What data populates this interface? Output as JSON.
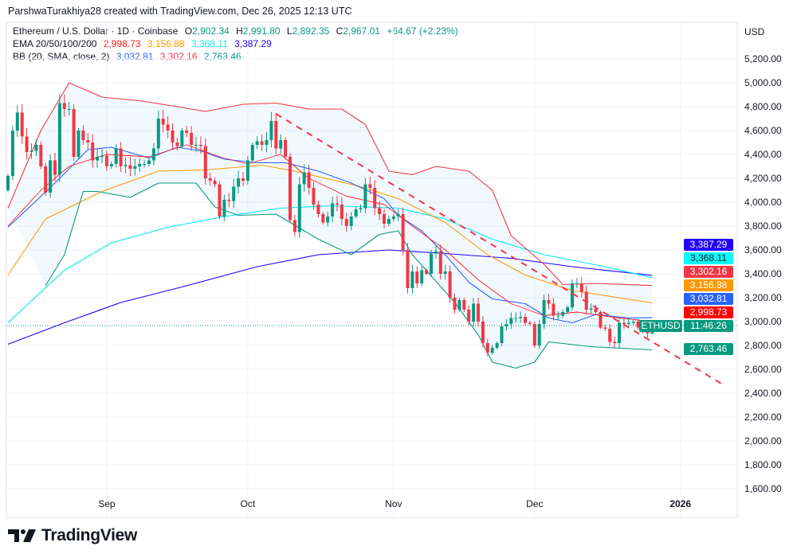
{
  "credit": "ParshwaTurakhiya28 created with TradingView.com, Dec 26, 2025 12:13 UTC",
  "legend": {
    "symbol": "Ethereum / U.S. Dollar · 1D · Coinbase",
    "o_label": "O",
    "o": "2,902.34",
    "h_label": "H",
    "h": "2,991.80",
    "l_label": "L",
    "l": "2,892.35",
    "c_label": "C",
    "c": "2,967.01",
    "change": "+64.67 (+2.23%)",
    "ema_label": "EMA 20/50/100/200",
    "ema20": "2,998.73",
    "ema50": "3,156.88",
    "ema100": "3,368.11",
    "ema200": "3,387.29",
    "bb_label": "BB (20, SMA, close, 2)",
    "bb_basis": "3,032.81",
    "bb_upper": "3,302.16",
    "bb_lower": "2,763.46"
  },
  "currency": "USD",
  "price_labels": {
    "ema200": "3,387.29",
    "ema100": "3,368.11",
    "bb_upper": "3,302.16",
    "ema50": "3,156.88",
    "bb_basis": "3,032.81",
    "ema20": "2,998.73",
    "symbol": "ETHUSD",
    "countdown": "11:46:26",
    "bb_lower": "2,763.46"
  },
  "colors": {
    "up": "#089981",
    "down": "#f23645",
    "ema20": "#ff1a1a",
    "ema50": "#ff9800",
    "ema100": "#00e5f0",
    "ema200": "#2200ff",
    "bb_basis": "#2962ff",
    "bb_upper": "#f23645",
    "bb_lower": "#089981",
    "trendline": "#f23645"
  },
  "brand": "TradingView",
  "chart_data": {
    "type": "candlestick",
    "symbol": "ETHUSD",
    "interval": "1D",
    "ylim": [
      1550,
      5300
    ],
    "yticks": [
      "1,600.00",
      "1,800.00",
      "2,000.00",
      "2,200.00",
      "2,400.00",
      "2,600.00",
      "2,800.00",
      "3,000.00",
      "3,200.00",
      "3,400.00",
      "3,600.00",
      "3,800.00",
      "4,000.00",
      "4,200.00",
      "4,400.00",
      "4,600.00",
      "4,800.00",
      "5,000.00",
      "5,200.00"
    ],
    "xticks": [
      {
        "label": "Sep",
        "date": "2025-09-01"
      },
      {
        "label": "Oct",
        "date": "2025-10-01"
      },
      {
        "label": "Nov",
        "date": "2025-11-01"
      },
      {
        "label": "Dec",
        "date": "2025-12-01"
      },
      {
        "label": "2026",
        "date": "2026-01-01",
        "bold": true
      }
    ],
    "grid": true,
    "start_date": "2025-08-11",
    "first_open": 4100,
    "close": [
      4220,
      4600,
      4750,
      4550,
      4420,
      4430,
      4480,
      4300,
      4080,
      4350,
      4230,
      4830,
      4780,
      4780,
      4380,
      4600,
      4520,
      4500,
      4350,
      4380,
      4390,
      4300,
      4320,
      4450,
      4300,
      4310,
      4280,
      4300,
      4320,
      4320,
      4350,
      4450,
      4700,
      4650,
      4600,
      4500,
      4470,
      4600,
      4580,
      4480,
      4480,
      4470,
      4200,
      4180,
      4150,
      3880,
      4020,
      4010,
      4130,
      4200,
      4180,
      4350,
      4480,
      4510,
      4480,
      4520,
      4680,
      4450,
      4520,
      4380,
      3850,
      3750,
      4150,
      4250,
      4120,
      3980,
      3900,
      3830,
      3880,
      3990,
      3980,
      3860,
      3800,
      3880,
      3940,
      3950,
      4150,
      4120,
      3950,
      3900,
      3820,
      3860,
      3880,
      3900,
      3600,
      3280,
      3420,
      3320,
      3430,
      3400,
      3570,
      3590,
      3400,
      3420,
      3200,
      3100,
      3180,
      3100,
      3000,
      3150,
      3000,
      2820,
      2740,
      2780,
      2820,
      2960,
      2980,
      3030,
      3030,
      3040,
      2990,
      2980,
      2800,
      2980,
      3180,
      3150,
      3050,
      3050,
      3080,
      3120,
      3320,
      3320,
      3250,
      3100,
      3110,
      3080,
      2950,
      2940,
      2830,
      2820,
      2990,
      2980,
      2990,
      3000,
      2950,
      2930,
      2902.34,
      2967.01
    ],
    "last_candle": {
      "date": "2025-12-26",
      "open": 2902.34,
      "high": 2991.8,
      "low": 2892.35,
      "close": 2967.01
    },
    "last_price": 2967.01,
    "indicators": {
      "bb_upper": [
        [
          "2025-08-11",
          3950
        ],
        [
          "2025-08-18",
          4600
        ],
        [
          "2025-08-24",
          5000
        ],
        [
          "2025-08-31",
          4880
        ],
        [
          "2025-09-08",
          4850
        ],
        [
          "2025-09-16",
          4800
        ],
        [
          "2025-09-22",
          4760
        ],
        [
          "2025-09-30",
          4820
        ],
        [
          "2025-10-07",
          4830
        ],
        [
          "2025-10-14",
          4780
        ],
        [
          "2025-10-21",
          4780
        ],
        [
          "2025-10-26",
          4650
        ],
        [
          "2025-10-31",
          4260
        ],
        [
          "2025-11-05",
          4230
        ],
        [
          "2025-11-10",
          4300
        ],
        [
          "2025-11-17",
          4260
        ],
        [
          "2025-11-22",
          4100
        ],
        [
          "2025-11-26",
          3720
        ],
        [
          "2025-12-03",
          3480
        ],
        [
          "2025-12-07",
          3310
        ],
        [
          "2025-12-14",
          3320
        ],
        [
          "2025-12-26",
          3302.16
        ]
      ],
      "bb_lower": [
        [
          "2025-08-19",
          3300
        ],
        [
          "2025-08-23",
          3560
        ],
        [
          "2025-08-27",
          4090
        ],
        [
          "2025-08-30",
          4090
        ],
        [
          "2025-09-06",
          4040
        ],
        [
          "2025-09-12",
          4160
        ],
        [
          "2025-09-20",
          4160
        ],
        [
          "2025-09-24",
          3960
        ],
        [
          "2025-09-29",
          3890
        ],
        [
          "2025-10-07",
          3900
        ],
        [
          "2025-10-16",
          3690
        ],
        [
          "2025-10-23",
          3560
        ],
        [
          "2025-10-29",
          3730
        ],
        [
          "2025-11-02",
          3760
        ],
        [
          "2025-11-05",
          3560
        ],
        [
          "2025-11-14",
          3160
        ],
        [
          "2025-11-19",
          2890
        ],
        [
          "2025-11-22",
          2660
        ],
        [
          "2025-11-27",
          2610
        ],
        [
          "2025-12-01",
          2660
        ],
        [
          "2025-12-04",
          2830
        ],
        [
          "2025-12-13",
          2790
        ],
        [
          "2025-12-26",
          2763.46
        ]
      ],
      "bb_basis": [
        [
          "2025-08-11",
          3790
        ],
        [
          "2025-08-21",
          4160
        ],
        [
          "2025-08-28",
          4440
        ],
        [
          "2025-09-02",
          4460
        ],
        [
          "2025-09-10",
          4370
        ],
        [
          "2025-09-16",
          4460
        ],
        [
          "2025-09-21",
          4430
        ],
        [
          "2025-09-26",
          4360
        ],
        [
          "2025-10-03",
          4330
        ],
        [
          "2025-10-09",
          4330
        ],
        [
          "2025-10-16",
          4260
        ],
        [
          "2025-10-23",
          4160
        ],
        [
          "2025-10-30",
          4030
        ],
        [
          "2025-11-02",
          3890
        ],
        [
          "2025-11-07",
          3760
        ],
        [
          "2025-11-12",
          3560
        ],
        [
          "2025-11-17",
          3330
        ],
        [
          "2025-11-22",
          3190
        ],
        [
          "2025-11-29",
          3150
        ],
        [
          "2025-12-04",
          3030
        ],
        [
          "2025-12-09",
          2990
        ],
        [
          "2025-12-14",
          3060
        ],
        [
          "2025-12-21",
          3030
        ],
        [
          "2025-12-26",
          3032.81
        ]
      ],
      "ema20": [
        [
          "2025-08-11",
          3800
        ],
        [
          "2025-08-18",
          4100
        ],
        [
          "2025-08-24",
          4300
        ],
        [
          "2025-09-01",
          4400
        ],
        [
          "2025-09-10",
          4380
        ],
        [
          "2025-09-18",
          4480
        ],
        [
          "2025-09-25",
          4380
        ],
        [
          "2025-10-01",
          4320
        ],
        [
          "2025-10-08",
          4400
        ],
        [
          "2025-10-14",
          4200
        ],
        [
          "2025-10-22",
          4050
        ],
        [
          "2025-10-30",
          3980
        ],
        [
          "2025-11-05",
          3800
        ],
        [
          "2025-11-12",
          3600
        ],
        [
          "2025-11-19",
          3350
        ],
        [
          "2025-11-26",
          3150
        ],
        [
          "2025-12-03",
          3050
        ],
        [
          "2025-12-10",
          3080
        ],
        [
          "2025-12-17",
          3040
        ],
        [
          "2025-12-26",
          2998.73
        ]
      ],
      "ema50": [
        [
          "2025-08-11",
          3390
        ],
        [
          "2025-08-19",
          3860
        ],
        [
          "2025-08-31",
          4090
        ],
        [
          "2025-09-12",
          4260
        ],
        [
          "2025-09-22",
          4270
        ],
        [
          "2025-10-04",
          4310
        ],
        [
          "2025-10-11",
          4260
        ],
        [
          "2025-10-25",
          4130
        ],
        [
          "2025-11-02",
          4030
        ],
        [
          "2025-11-12",
          3830
        ],
        [
          "2025-11-21",
          3560
        ],
        [
          "2025-11-29",
          3390
        ],
        [
          "2025-12-09",
          3260
        ],
        [
          "2025-12-26",
          3156.88
        ]
      ],
      "ema100": [
        [
          "2025-08-11",
          2990
        ],
        [
          "2025-08-23",
          3430
        ],
        [
          "2025-09-02",
          3660
        ],
        [
          "2025-09-14",
          3790
        ],
        [
          "2025-09-26",
          3880
        ],
        [
          "2025-10-08",
          3950
        ],
        [
          "2025-10-19",
          3970
        ],
        [
          "2025-11-02",
          3950
        ],
        [
          "2025-11-12",
          3860
        ],
        [
          "2025-11-22",
          3690
        ],
        [
          "2025-12-03",
          3560
        ],
        [
          "2025-12-16",
          3460
        ],
        [
          "2025-12-26",
          3368.11
        ]
      ],
      "ema200": [
        [
          "2025-08-11",
          2810
        ],
        [
          "2025-08-23",
          2990
        ],
        [
          "2025-09-04",
          3160
        ],
        [
          "2025-09-17",
          3290
        ],
        [
          "2025-10-03",
          3460
        ],
        [
          "2025-10-16",
          3560
        ],
        [
          "2025-10-31",
          3600
        ],
        [
          "2025-11-12",
          3570
        ],
        [
          "2025-11-26",
          3530
        ],
        [
          "2025-12-09",
          3460
        ],
        [
          "2025-12-26",
          3387.29
        ]
      ]
    },
    "trendline": [
      [
        "2025-10-07",
        4740
      ],
      [
        "2026-01-10",
        2473
      ]
    ]
  }
}
